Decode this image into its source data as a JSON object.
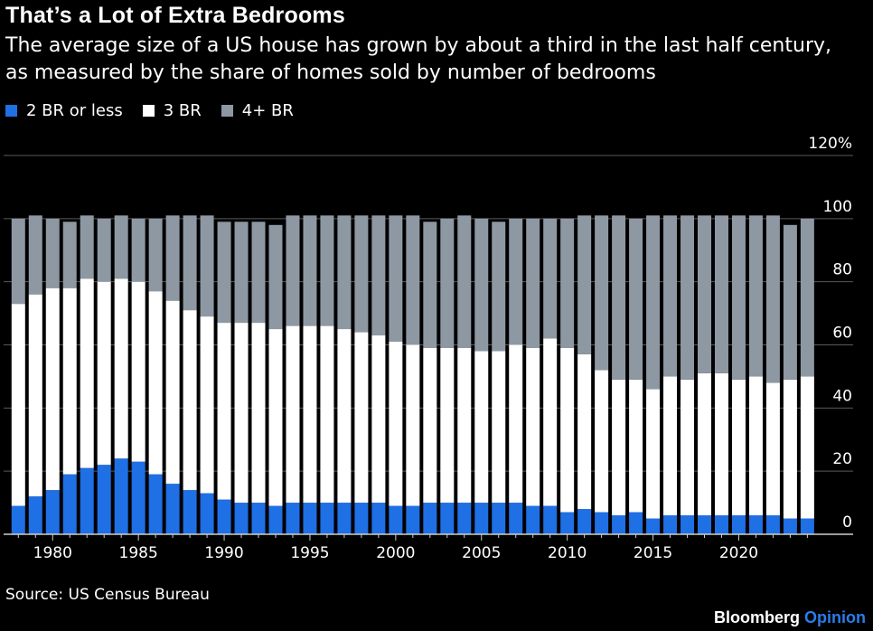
{
  "header": {
    "title": "That’s a Lot of Extra Bedrooms",
    "subtitle": "The average size of a US house has grown by about a third in the last half century, as measured by the share of homes sold by number of bedrooms"
  },
  "legend": [
    {
      "label": "2 BR or less",
      "color": "#1f6fe5"
    },
    {
      "label": "3 BR",
      "color": "#ffffff"
    },
    {
      "label": "4+ BR",
      "color": "#8d98a3"
    }
  ],
  "footer": {
    "source": "Source: US Census Bureau",
    "brand": "Bloomberg",
    "brand_accent": "Opinion"
  },
  "chart_data": {
    "type": "bar",
    "stacked": true,
    "x": [
      1978,
      1979,
      1980,
      1981,
      1982,
      1983,
      1984,
      1985,
      1986,
      1987,
      1988,
      1989,
      1990,
      1991,
      1992,
      1993,
      1994,
      1995,
      1996,
      1997,
      1998,
      1999,
      2000,
      2001,
      2002,
      2003,
      2004,
      2005,
      2006,
      2007,
      2008,
      2009,
      2010,
      2011,
      2012,
      2013,
      2014,
      2015,
      2016,
      2017,
      2018,
      2019,
      2020,
      2021,
      2022,
      2023,
      2024
    ],
    "x_ticks": [
      "1980",
      "1985",
      "1990",
      "1995",
      "2000",
      "2005",
      "2010",
      "2015",
      "2020"
    ],
    "y_ticks": [
      "120%",
      "100",
      "80",
      "60",
      "40",
      "20",
      "0"
    ],
    "ylim": [
      0,
      120
    ],
    "grid": true,
    "legend_position": "top-left",
    "series": [
      {
        "name": "2 BR or less",
        "color": "#1f6fe5",
        "values": [
          9,
          12,
          14,
          19,
          21,
          22,
          24,
          23,
          19,
          16,
          14,
          13,
          11,
          10,
          10,
          9,
          10,
          10,
          10,
          10,
          10,
          10,
          9,
          9,
          10,
          10,
          10,
          10,
          10,
          10,
          9,
          9,
          7,
          8,
          7,
          6,
          7,
          5,
          6,
          6,
          6,
          6,
          6,
          6,
          6,
          5,
          5
        ]
      },
      {
        "name": "3 BR",
        "color": "#ffffff",
        "values": [
          64,
          64,
          64,
          59,
          60,
          58,
          57,
          57,
          58,
          58,
          57,
          56,
          56,
          57,
          57,
          56,
          56,
          56,
          56,
          55,
          54,
          53,
          52,
          51,
          49,
          49,
          49,
          48,
          48,
          50,
          50,
          53,
          52,
          49,
          45,
          43,
          42,
          41,
          44,
          43,
          45,
          45,
          43,
          44,
          42,
          44,
          45
        ]
      },
      {
        "name": "4+ BR",
        "color": "#8d98a3",
        "values": [
          27,
          25,
          22,
          21,
          20,
          20,
          20,
          20,
          23,
          27,
          30,
          32,
          32,
          32,
          32,
          33,
          35,
          35,
          35,
          36,
          37,
          38,
          40,
          41,
          40,
          41,
          42,
          42,
          41,
          40,
          41,
          38,
          41,
          44,
          49,
          52,
          51,
          55,
          51,
          52,
          50,
          50,
          52,
          51,
          53,
          49,
          50
        ]
      }
    ]
  }
}
